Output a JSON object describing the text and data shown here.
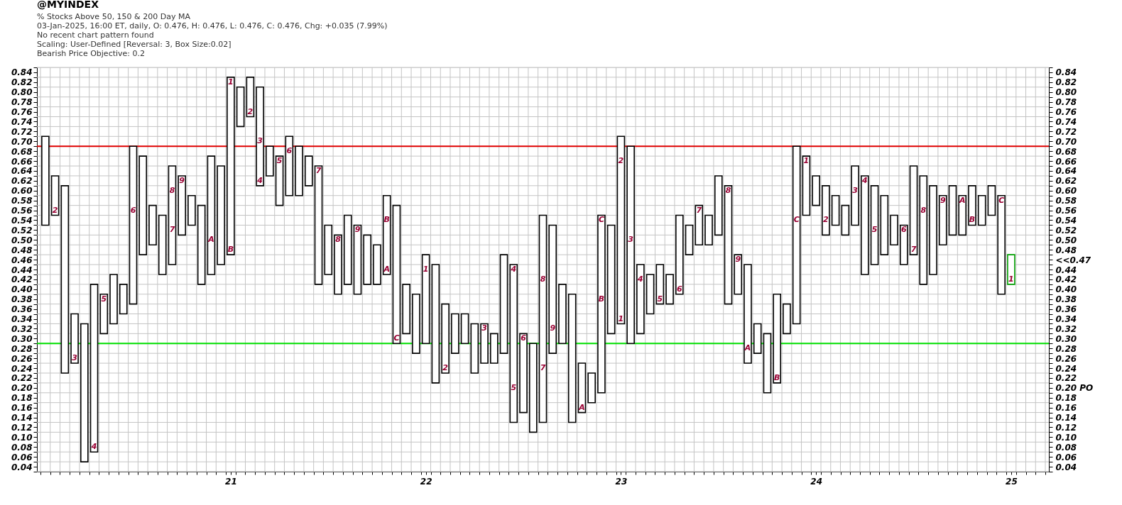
{
  "chart_data": {
    "type": "bar",
    "title": "@MYINDEX",
    "subtitle": "% Stocks Above 50, 150 & 200 Day MA",
    "annotations": [
      "03-Jan-2025, 16:00 ET, daily, O: 0.476, H: 0.476, L: 0.476, C: 0.476, Chg: +0.035 (7.99%)",
      "No recent chart pattern found",
      "Scaling: User-Defined [Reversal: 3, Box Size:0.02]",
      "Bearish Price Objective: 0.2",
      {
        "text": "2",
        "x": 20.1,
        "y": 0.56
      },
      {
        "text": "3",
        "x": 20.2,
        "y": 0.26
      },
      {
        "text": "4",
        "x": 20.3,
        "y": 0.08
      },
      {
        "text": "5",
        "x": 20.35,
        "y": 0.38
      },
      {
        "text": "6",
        "x": 20.5,
        "y": 0.56
      },
      {
        "text": "7",
        "x": 20.7,
        "y": 0.52
      },
      {
        "text": "8",
        "x": 20.7,
        "y": 0.6
      },
      {
        "text": "9",
        "x": 20.75,
        "y": 0.62
      },
      {
        "text": "A",
        "x": 20.9,
        "y": 0.5
      },
      {
        "text": "B",
        "x": 21,
        "y": 0.48
      },
      {
        "text": "1",
        "x": 21,
        "y": 0.82
      },
      {
        "text": "2",
        "x": 21.1,
        "y": 0.76
      },
      {
        "text": "3",
        "x": 21.15,
        "y": 0.7
      },
      {
        "text": "4",
        "x": 21.15,
        "y": 0.62
      },
      {
        "text": "5",
        "x": 21.25,
        "y": 0.66
      },
      {
        "text": "6",
        "x": 21.3,
        "y": 0.68
      },
      {
        "text": "7",
        "x": 21.45,
        "y": 0.64
      },
      {
        "text": "8",
        "x": 21.55,
        "y": 0.5
      },
      {
        "text": "9",
        "x": 21.65,
        "y": 0.52
      },
      {
        "text": "A",
        "x": 21.8,
        "y": 0.44
      },
      {
        "text": "B",
        "x": 21.8,
        "y": 0.54
      },
      {
        "text": "C",
        "x": 21.85,
        "y": 0.3
      },
      {
        "text": "1",
        "x": 22,
        "y": 0.44
      },
      {
        "text": "2",
        "x": 22.1,
        "y": 0.24
      },
      {
        "text": "3",
        "x": 22.3,
        "y": 0.32
      },
      {
        "text": "4",
        "x": 22.45,
        "y": 0.44
      },
      {
        "text": "5",
        "x": 22.45,
        "y": 0.2
      },
      {
        "text": "6",
        "x": 22.5,
        "y": 0.3
      },
      {
        "text": "7",
        "x": 22.6,
        "y": 0.24
      },
      {
        "text": "8",
        "x": 22.6,
        "y": 0.42
      },
      {
        "text": "9",
        "x": 22.65,
        "y": 0.32
      },
      {
        "text": "A",
        "x": 22.8,
        "y": 0.16
      },
      {
        "text": "B",
        "x": 22.9,
        "y": 0.38
      },
      {
        "text": "C",
        "x": 22.9,
        "y": 0.54
      },
      {
        "text": "1",
        "x": 23,
        "y": 0.34
      },
      {
        "text": "2",
        "x": 23,
        "y": 0.66
      },
      {
        "text": "3",
        "x": 23.05,
        "y": 0.5
      },
      {
        "text": "4",
        "x": 23.1,
        "y": 0.42
      },
      {
        "text": "5",
        "x": 23.2,
        "y": 0.38
      },
      {
        "text": "6",
        "x": 23.3,
        "y": 0.4
      },
      {
        "text": "7",
        "x": 23.4,
        "y": 0.56
      },
      {
        "text": "8",
        "x": 23.55,
        "y": 0.6
      },
      {
        "text": "9",
        "x": 23.6,
        "y": 0.46
      },
      {
        "text": "A",
        "x": 23.65,
        "y": 0.28
      },
      {
        "text": "B",
        "x": 23.8,
        "y": 0.22
      },
      {
        "text": "C",
        "x": 23.9,
        "y": 0.54
      },
      {
        "text": "1",
        "x": 23.95,
        "y": 0.66
      },
      {
        "text": "2",
        "x": 24.05,
        "y": 0.54
      },
      {
        "text": "3",
        "x": 24.2,
        "y": 0.6
      },
      {
        "text": "4",
        "x": 24.25,
        "y": 0.62
      },
      {
        "text": "5",
        "x": 24.3,
        "y": 0.52
      },
      {
        "text": "6",
        "x": 24.45,
        "y": 0.52
      },
      {
        "text": "7",
        "x": 24.5,
        "y": 0.48
      },
      {
        "text": "8",
        "x": 24.55,
        "y": 0.56
      },
      {
        "text": "9",
        "x": 24.65,
        "y": 0.58
      },
      {
        "text": "A",
        "x": 24.75,
        "y": 0.58
      },
      {
        "text": "B",
        "x": 24.8,
        "y": 0.54
      },
      {
        "text": "C",
        "x": 24.95,
        "y": 0.58
      },
      {
        "text": "1",
        "x": 25,
        "y": 0.42
      }
    ],
    "x": [
      20.05,
      20.1,
      20.15,
      20.2,
      20.25,
      20.3,
      20.35,
      20.4,
      20.45,
      20.5,
      20.55,
      20.6,
      20.65,
      20.7,
      20.75,
      20.8,
      20.85,
      20.9,
      20.95,
      21,
      21.05,
      21.1,
      21.15,
      21.2,
      21.25,
      21.3,
      21.35,
      21.4,
      21.45,
      21.5,
      21.55,
      21.6,
      21.65,
      21.7,
      21.75,
      21.8,
      21.85,
      21.9,
      21.95,
      22,
      22.05,
      22.1,
      22.15,
      22.2,
      22.25,
      22.3,
      22.35,
      22.4,
      22.45,
      22.5,
      22.55,
      22.6,
      22.65,
      22.7,
      22.75,
      22.8,
      22.85,
      22.9,
      22.95,
      23,
      23.05,
      23.1,
      23.15,
      23.2,
      23.25,
      23.3,
      23.35,
      23.4,
      23.45,
      23.5,
      23.55,
      23.6,
      23.65,
      23.7,
      23.75,
      23.8,
      23.85,
      23.9,
      23.95,
      24,
      24.05,
      24.1,
      24.15,
      24.2,
      24.25,
      24.3,
      24.35,
      24.4,
      24.45,
      24.5,
      24.55,
      24.6,
      24.65,
      24.7,
      24.75,
      24.8,
      24.85,
      24.9,
      24.95,
      25
    ],
    "base": [
      0.53,
      0.55,
      0.23,
      0.25,
      0.05,
      0.07,
      0.31,
      0.33,
      0.35,
      0.37,
      0.47,
      0.49,
      0.43,
      0.45,
      0.51,
      0.53,
      0.41,
      0.43,
      0.45,
      0.47,
      0.73,
      0.75,
      0.61,
      0.63,
      0.57,
      0.59,
      0.59,
      0.61,
      0.41,
      0.43,
      0.39,
      0.41,
      0.39,
      0.41,
      0.41,
      0.43,
      0.29,
      0.31,
      0.27,
      0.29,
      0.21,
      0.23,
      0.27,
      0.29,
      0.23,
      0.25,
      0.25,
      0.27,
      0.13,
      0.15,
      0.11,
      0.13,
      0.27,
      0.29,
      0.13,
      0.15,
      0.17,
      0.19,
      0.31,
      0.33,
      0.29,
      0.31,
      0.35,
      0.37,
      0.37,
      0.39,
      0.47,
      0.49,
      0.49,
      0.51,
      0.37,
      0.39,
      0.25,
      0.27,
      0.19,
      0.21,
      0.31,
      0.33,
      0.55,
      0.57,
      0.51,
      0.53,
      0.51,
      0.53,
      0.43,
      0.45,
      0.47,
      0.49,
      0.45,
      0.47,
      0.41,
      0.43,
      0.49,
      0.51,
      0.51,
      0.53,
      0.53,
      0.55,
      0.39,
      0.41
    ],
    "values": [
      0.18,
      0.08,
      0.38,
      0.1,
      0.28,
      0.34,
      0.08,
      0.1,
      0.06,
      0.32,
      0.2,
      0.08,
      0.12,
      0.2,
      0.12,
      0.06,
      0.16,
      0.24,
      0.2,
      0.36,
      0.08,
      0.08,
      0.2,
      0.06,
      0.1,
      0.12,
      0.1,
      0.06,
      0.24,
      0.1,
      0.12,
      0.14,
      0.14,
      0.1,
      0.08,
      0.16,
      0.28,
      0.1,
      0.12,
      0.18,
      0.24,
      0.14,
      0.08,
      0.06,
      0.1,
      0.08,
      0.06,
      0.2,
      0.32,
      0.16,
      0.18,
      0.42,
      0.26,
      0.12,
      0.26,
      0.1,
      0.06,
      0.36,
      0.22,
      0.38,
      0.4,
      0.14,
      0.08,
      0.08,
      0.06,
      0.16,
      0.06,
      0.08,
      0.06,
      0.12,
      0.24,
      0.08,
      0.2,
      0.06,
      0.12,
      0.18,
      0.06,
      0.36,
      0.12,
      0.06,
      0.1,
      0.06,
      0.06,
      0.12,
      0.2,
      0.16,
      0.12,
      0.06,
      0.08,
      0.18,
      0.22,
      0.18,
      0.1,
      0.1,
      0.08,
      0.08,
      0.06,
      0.06,
      0.2,
      0.06
    ],
    "colors": [
      "#000000",
      "#000000",
      "#000000",
      "#000000",
      "#000000",
      "#000000",
      "#000000",
      "#000000",
      "#000000",
      "#000000",
      "#000000",
      "#000000",
      "#000000",
      "#000000",
      "#000000",
      "#000000",
      "#000000",
      "#000000",
      "#000000",
      "#000000",
      "#000000",
      "#000000",
      "#000000",
      "#000000",
      "#000000",
      "#000000",
      "#000000",
      "#000000",
      "#000000",
      "#000000",
      "#000000",
      "#000000",
      "#000000",
      "#000000",
      "#000000",
      "#000000",
      "#000000",
      "#000000",
      "#000000",
      "#000000",
      "#000000",
      "#000000",
      "#000000",
      "#000000",
      "#000000",
      "#000000",
      "#000000",
      "#000000",
      "#000000",
      "#000000",
      "#000000",
      "#000000",
      "#000000",
      "#000000",
      "#000000",
      "#000000",
      "#000000",
      "#000000",
      "#000000",
      "#000000",
      "#000000",
      "#000000",
      "#000000",
      "#000000",
      "#000000",
      "#000000",
      "#000000",
      "#000000",
      "#000000",
      "#000000",
      "#000000",
      "#000000",
      "#000000",
      "#000000",
      "#000000",
      "#000000",
      "#000000",
      "#000000",
      "#000000",
      "#000000",
      "#000000",
      "#000000",
      "#000000",
      "#000000",
      "#000000",
      "#000000",
      "#000000",
      "#000000",
      "#000000",
      "#000000",
      "#000000",
      "#000000",
      "#000000",
      "#000000",
      "#000000",
      "#000000",
      "#000000",
      "#000000",
      "#000000",
      "#00a000"
    ],
    "xlim": [
      20.025,
      25.175
    ],
    "xticks": [
      21,
      22,
      23,
      24,
      25,
      {
        "value": 20.025,
        "label": null
      },
      {
        "value": 20.075,
        "label": null
      },
      {
        "value": 20.125,
        "label": null
      },
      {
        "value": 20.175,
        "label": null
      },
      {
        "value": 20.225,
        "label": null
      },
      {
        "value": 20.275,
        "label": null
      },
      {
        "value": 20.325,
        "label": null
      },
      {
        "value": 20.375,
        "label": null
      },
      {
        "value": 20.425,
        "label": null
      },
      {
        "value": 20.475,
        "label": null
      },
      {
        "value": 20.525,
        "label": null
      },
      {
        "value": 20.575,
        "label": null
      },
      {
        "value": 20.625,
        "label": null
      },
      {
        "value": 20.675,
        "label": null
      },
      {
        "value": 20.725,
        "label": null
      },
      {
        "value": 20.775,
        "label": null
      },
      {
        "value": 20.825,
        "label": null
      },
      {
        "value": 20.875,
        "label": null
      },
      {
        "value": 20.925,
        "label": null
      },
      {
        "value": 20.975,
        "label": null
      },
      {
        "value": 21.025,
        "label": null
      },
      {
        "value": 21.075,
        "label": null
      },
      {
        "value": 21.125,
        "label": null
      },
      {
        "value": 21.175,
        "label": null
      },
      {
        "value": 21.225,
        "label": null
      },
      {
        "value": 21.275,
        "label": null
      },
      {
        "value": 21.325,
        "label": null
      },
      {
        "value": 21.375,
        "label": null
      },
      {
        "value": 21.425,
        "label": null
      },
      {
        "value": 21.475,
        "label": null
      },
      {
        "value": 21.525,
        "label": null
      },
      {
        "value": 21.575,
        "label": null
      },
      {
        "value": 21.625,
        "label": null
      },
      {
        "value": 21.675,
        "label": null
      },
      {
        "value": 21.725,
        "label": null
      },
      {
        "value": 21.775,
        "label": null
      },
      {
        "value": 21.825,
        "label": null
      },
      {
        "value": 21.875,
        "label": null
      },
      {
        "value": 21.925,
        "label": null
      },
      {
        "value": 21.975,
        "label": null
      },
      {
        "value": 22.025,
        "label": null
      },
      {
        "value": 22.075,
        "label": null
      },
      {
        "value": 22.125,
        "label": null
      },
      {
        "value": 22.175,
        "label": null
      },
      {
        "value": 22.225,
        "label": null
      },
      {
        "value": 22.275,
        "label": null
      },
      {
        "value": 22.325,
        "label": null
      },
      {
        "value": 22.375,
        "label": null
      },
      {
        "value": 22.425,
        "label": null
      },
      {
        "value": 22.475,
        "label": null
      },
      {
        "value": 22.525,
        "label": null
      },
      {
        "value": 22.575,
        "label": null
      },
      {
        "value": 22.625,
        "label": null
      },
      {
        "value": 22.675,
        "label": null
      },
      {
        "value": 22.725,
        "label": null
      },
      {
        "value": 22.775,
        "label": null
      },
      {
        "value": 22.825,
        "label": null
      },
      {
        "value": 22.875,
        "label": null
      },
      {
        "value": 22.925,
        "label": null
      },
      {
        "value": 22.975,
        "label": null
      },
      {
        "value": 23.025,
        "label": null
      },
      {
        "value": 23.075,
        "label": null
      },
      {
        "value": 23.125,
        "label": null
      },
      {
        "value": 23.175,
        "label": null
      },
      {
        "value": 23.225,
        "label": null
      },
      {
        "value": 23.275,
        "label": null
      },
      {
        "value": 23.325,
        "label": null
      },
      {
        "value": 23.375,
        "label": null
      },
      {
        "value": 23.425,
        "label": null
      },
      {
        "value": 23.475,
        "label": null
      },
      {
        "value": 23.525,
        "label": null
      },
      {
        "value": 23.575,
        "label": null
      },
      {
        "value": 23.625,
        "label": null
      },
      {
        "value": 23.675,
        "label": null
      },
      {
        "value": 23.725,
        "label": null
      },
      {
        "value": 23.775,
        "label": null
      },
      {
        "value": 23.825,
        "label": null
      },
      {
        "value": 23.875,
        "label": null
      },
      {
        "value": 23.925,
        "label": null
      },
      {
        "value": 23.975,
        "label": null
      },
      {
        "value": 24.025,
        "label": null
      },
      {
        "value": 24.075,
        "label": null
      },
      {
        "value": 24.125,
        "label": null
      },
      {
        "value": 24.175,
        "label": null
      },
      {
        "value": 24.225,
        "label": null
      },
      {
        "value": 24.275,
        "label": null
      },
      {
        "value": 24.325,
        "label": null
      },
      {
        "value": 24.375,
        "label": null
      },
      {
        "value": 24.425,
        "label": null
      },
      {
        "value": 24.475,
        "label": null
      },
      {
        "value": 24.525,
        "label": null
      },
      {
        "value": 24.575,
        "label": null
      },
      {
        "value": 24.625,
        "label": null
      },
      {
        "value": 24.675,
        "label": null
      },
      {
        "value": 24.725,
        "label": null
      },
      {
        "value": 24.775,
        "label": null
      },
      {
        "value": 24.825,
        "label": null
      },
      {
        "value": 24.875,
        "label": null
      },
      {
        "value": 24.925,
        "label": null
      },
      {
        "value": 24.975,
        "label": null
      },
      {
        "value": 25.025,
        "label": null
      },
      {
        "value": 25.075,
        "label": null
      },
      {
        "value": 25.125,
        "label": null
      },
      {
        "value": 25.175,
        "label": null
      }
    ],
    "ylim": [
      0.03,
      0.85
    ],
    "yticks": [
      0.04,
      0.06,
      0.08,
      {
        "value": 0.1,
        "label": "0.10"
      },
      0.12,
      0.14,
      0.16,
      0.18,
      {
        "value": 0.2,
        "label": "0.20"
      },
      0.22,
      0.24,
      0.26,
      0.28,
      {
        "value": 0.3,
        "label": "0.30"
      },
      0.32,
      0.34,
      0.36,
      0.38,
      {
        "value": 0.4,
        "label": "0.40"
      },
      0.42,
      0.44,
      0.46,
      0.48,
      {
        "value": 0.5,
        "label": "0.50"
      },
      0.52,
      0.54,
      0.56,
      0.58,
      {
        "value": 0.6,
        "label": "0.60"
      },
      0.62,
      0.64,
      0.66,
      0.68,
      {
        "value": 0.7,
        "label": "0.70"
      },
      0.72,
      0.74,
      0.76,
      0.78,
      {
        "value": 0.8,
        "label": "0.80"
      },
      0.82,
      0.84,
      {
        "value": 0.03,
        "label": null
      },
      {
        "value": 0.05,
        "label": null
      },
      {
        "value": 0.07,
        "label": null
      },
      {
        "value": 0.09,
        "label": null
      },
      {
        "value": 0.11,
        "label": null
      },
      {
        "value": 0.13,
        "label": null
      },
      {
        "value": 0.15,
        "label": null
      },
      {
        "value": 0.17,
        "label": null
      },
      {
        "value": 0.19,
        "label": null
      },
      {
        "value": 0.21,
        "label": null
      },
      {
        "value": 0.23,
        "label": null
      },
      {
        "value": 0.25,
        "label": null
      },
      {
        "value": 0.27,
        "label": null
      },
      {
        "value": 0.29,
        "label": null
      },
      {
        "value": 0.31,
        "label": null
      },
      {
        "value": 0.33,
        "label": null
      },
      {
        "value": 0.35,
        "label": null
      },
      {
        "value": 0.37,
        "label": null
      },
      {
        "value": 0.39,
        "label": null
      },
      {
        "value": 0.41,
        "label": null
      },
      {
        "value": 0.43,
        "label": null
      },
      {
        "value": 0.45,
        "label": null
      },
      {
        "value": 0.47,
        "label": null
      },
      {
        "value": 0.49,
        "label": null
      },
      {
        "value": 0.51,
        "label": null
      },
      {
        "value": 0.53,
        "label": null
      },
      {
        "value": 0.55,
        "label": null
      },
      {
        "value": 0.57,
        "label": null
      },
      {
        "value": 0.59,
        "label": null
      },
      {
        "value": 0.61,
        "label": null
      },
      {
        "value": 0.63,
        "label": null
      },
      {
        "value": 0.65,
        "label": null
      },
      {
        "value": 0.67,
        "label": null
      },
      {
        "value": 0.69,
        "label": null
      },
      {
        "value": 0.71,
        "label": null
      },
      {
        "value": 0.73,
        "label": null
      },
      {
        "value": 0.75,
        "label": null
      },
      {
        "value": 0.77,
        "label": null
      },
      {
        "value": 0.79,
        "label": null
      },
      {
        "value": 0.81,
        "label": null
      },
      {
        "value": 0.83,
        "label": null
      },
      {
        "value": 0.85,
        "label": null
      }
    ],
    "y2lim": [
      0.03,
      0.85
    ],
    "y2ticks": [
      0.04,
      0.06,
      0.08,
      {
        "value": 0.1,
        "label": "0.10"
      },
      0.12,
      0.14,
      0.16,
      0.18,
      {
        "value": 0.2,
        "label": "0.20 PO"
      },
      0.22,
      0.24,
      0.26,
      0.28,
      {
        "value": 0.3,
        "label": "0.30"
      },
      0.32,
      0.34,
      0.36,
      0.38,
      {
        "value": 0.4,
        "label": "0.40"
      },
      0.42,
      0.44,
      {
        "value": 0.46,
        "label": "<<0.47"
      },
      0.48,
      {
        "value": 0.5,
        "label": "0.50"
      },
      0.52,
      0.54,
      0.56,
      0.58,
      {
        "value": 0.6,
        "label": "0.60"
      },
      0.62,
      0.64,
      0.66,
      0.68,
      {
        "value": 0.7,
        "label": "0.70"
      },
      0.72,
      0.74,
      0.76,
      0.78,
      {
        "value": 0.8,
        "label": "0.80"
      },
      0.82,
      0.84,
      {
        "value": 0.03,
        "label": null
      },
      {
        "value": 0.05,
        "label": null
      },
      {
        "value": 0.07,
        "label": null
      },
      {
        "value": 0.09,
        "label": null
      },
      {
        "value": 0.11,
        "label": null
      },
      {
        "value": 0.13,
        "label": null
      },
      {
        "value": 0.15,
        "label": null
      },
      {
        "value": 0.17,
        "label": null
      },
      {
        "value": 0.19,
        "label": null
      },
      {
        "value": 0.21,
        "label": null
      },
      {
        "value": 0.23,
        "label": null
      },
      {
        "value": 0.25,
        "label": null
      },
      {
        "value": 0.27,
        "label": null
      },
      {
        "value": 0.29,
        "label": null
      },
      {
        "value": 0.31,
        "label": null
      },
      {
        "value": 0.33,
        "label": null
      },
      {
        "value": 0.35,
        "label": null
      },
      {
        "value": 0.37,
        "label": null
      },
      {
        "value": 0.39,
        "label": null
      },
      {
        "value": 0.41,
        "label": null
      },
      {
        "value": 0.43,
        "label": null
      },
      {
        "value": 0.45,
        "label": null
      },
      {
        "value": 0.47,
        "label": null
      },
      {
        "value": 0.49,
        "label": null
      },
      {
        "value": 0.51,
        "label": null
      },
      {
        "value": 0.53,
        "label": null
      },
      {
        "value": 0.55,
        "label": null
      },
      {
        "value": 0.57,
        "label": null
      },
      {
        "value": 0.59,
        "label": null
      },
      {
        "value": 0.61,
        "label": null
      },
      {
        "value": 0.63,
        "label": null
      },
      {
        "value": 0.65,
        "label": null
      },
      {
        "value": 0.67,
        "label": null
      },
      {
        "value": 0.69,
        "label": null
      },
      {
        "value": 0.71,
        "label": null
      },
      {
        "value": 0.73,
        "label": null
      },
      {
        "value": 0.75,
        "label": null
      },
      {
        "value": 0.77,
        "label": null
      },
      {
        "value": 0.79,
        "label": null
      },
      {
        "value": 0.81,
        "label": null
      },
      {
        "value": 0.83,
        "label": null
      },
      {
        "value": 0.85,
        "label": null
      }
    ],
    "ref_lines": [
      {
        "axis": "y",
        "value": 0.69,
        "color": "#e00000"
      },
      {
        "axis": "y",
        "value": 0.29,
        "color": "#00e000"
      }
    ],
    "grid": true
  }
}
